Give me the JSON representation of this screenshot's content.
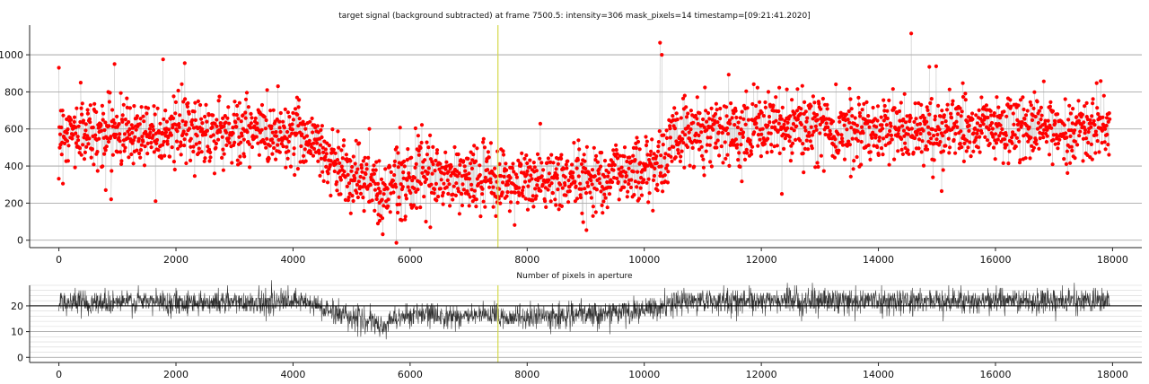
{
  "chart_data": [
    {
      "type": "scatter",
      "title": "target signal (background subtracted) at frame 7500.5: intensity=306 mask_pixels=14 timestamp=[09:21:41.2020]",
      "xlim": [
        -500,
        18500
      ],
      "ylim": [
        -40,
        1160
      ],
      "xticks": [
        0,
        2000,
        4000,
        6000,
        8000,
        10000,
        12000,
        14000,
        16000,
        18000
      ],
      "yticks": [
        0,
        200,
        400,
        600,
        800,
        1000
      ],
      "grid": "horizontal",
      "cursor_x": 7500.5,
      "marker_color": "#ff0000",
      "line_color": "#b0b0b0",
      "cursor_color": "#d4d94a",
      "frames": [
        0,
        17950
      ],
      "trend": {
        "x": [
          0,
          1000,
          2000,
          3000,
          4000,
          4300,
          4600,
          5000,
          5400,
          5500,
          5700,
          6000,
          7000,
          8000,
          9000,
          9600,
          10000,
          10300,
          10500,
          11000,
          12000,
          13000,
          14000,
          15000,
          16000,
          17000,
          17950
        ],
        "y": [
          580,
          585,
          590,
          585,
          580,
          560,
          440,
          360,
          300,
          220,
          330,
          345,
          330,
          315,
          335,
          370,
          390,
          410,
          560,
          600,
          610,
          605,
          600,
          600,
          600,
          600,
          600
        ]
      },
      "spread": 90,
      "outliers": [
        {
          "x": 0,
          "y": 930
        },
        {
          "x": 950,
          "y": 950
        },
        {
          "x": 1780,
          "y": 975
        },
        {
          "x": 2150,
          "y": 955
        },
        {
          "x": 10270,
          "y": 1065
        },
        {
          "x": 10300,
          "y": 1000
        },
        {
          "x": 14560,
          "y": 1115
        },
        {
          "x": 14870,
          "y": 935
        },
        {
          "x": 5450,
          "y": 90
        },
        {
          "x": 5480,
          "y": 105
        },
        {
          "x": 12350,
          "y": 250
        },
        {
          "x": 15080,
          "y": 265
        },
        {
          "x": 800,
          "y": 270
        }
      ]
    },
    {
      "type": "line",
      "title": "Number of pixels in aperture",
      "xlim": [
        -500,
        18500
      ],
      "ylim": [
        -2,
        28
      ],
      "xticks": [
        0,
        2000,
        4000,
        6000,
        8000,
        10000,
        12000,
        14000,
        16000,
        18000
      ],
      "yticks": [
        0,
        10,
        20
      ],
      "hline": 20,
      "grid": "horizontal",
      "cursor_x": 7500.5,
      "line_color": "#333333",
      "cursor_color": "#d4d94a",
      "frames": [
        0,
        17950
      ],
      "trend": {
        "x": [
          0,
          1000,
          2000,
          3000,
          4000,
          4300,
          4600,
          5000,
          5400,
          5500,
          5700,
          6000,
          7000,
          8000,
          9000,
          9600,
          10000,
          10300,
          10500,
          11000,
          12000,
          13000,
          14000,
          15000,
          16000,
          17000,
          17950
        ],
        "y": [
          21.5,
          21.5,
          21.6,
          21.5,
          21.5,
          21,
          18,
          16,
          13,
          11,
          15,
          16.5,
          16,
          15.5,
          16.5,
          17.5,
          18,
          19,
          21.5,
          22,
          22,
          22,
          22,
          22,
          22,
          22,
          22
        ]
      },
      "spread": 2.6
    }
  ]
}
